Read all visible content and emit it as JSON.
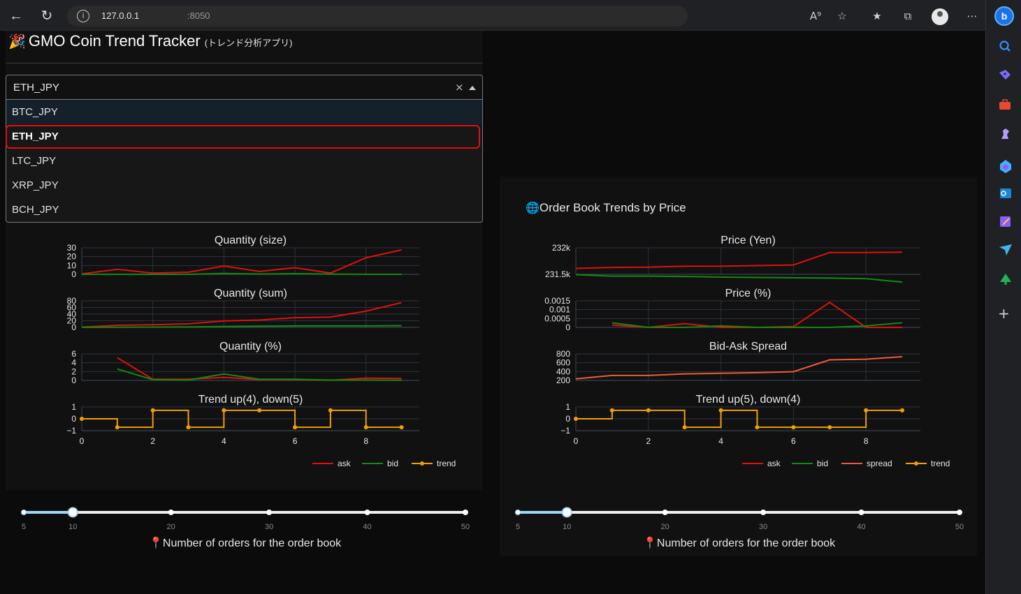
{
  "browser": {
    "url_host": "127.0.0.1",
    "url_port": ":8050"
  },
  "app": {
    "title": "GMO Coin Trend Tracker",
    "subtitle": "(トレンド分析アプリ)"
  },
  "symbol_select": {
    "value": "ETH_JPY",
    "options": [
      "BTC_JPY",
      "ETH_JPY",
      "LTC_JPY",
      "XRP_JPY",
      "BCH_JPY"
    ]
  },
  "right_panel": {
    "title": "Order Book Trends by Price"
  },
  "left_chart": {
    "chart_data": {
      "type": "line",
      "x": [
        0,
        1,
        2,
        3,
        4,
        5,
        6,
        7,
        8,
        9
      ],
      "subplots": [
        {
          "title": "Quantity (size)",
          "yticks": [
            "30",
            "20",
            "10",
            "0"
          ],
          "ylim": [
            0,
            32
          ],
          "series": [
            {
              "name": "ask",
              "color": "#e01010",
              "values": [
                0.5,
                6,
                1.5,
                2.5,
                10,
                3.5,
                8,
                1.5,
                20,
                29.5
              ]
            },
            {
              "name": "bid",
              "color": "#138a13",
              "values": [
                0,
                0,
                0,
                0,
                1,
                0.3,
                0.8,
                0.3,
                0,
                0
              ]
            }
          ]
        },
        {
          "title": "Quantity (sum)",
          "yticks": [
            "80",
            "60",
            "40",
            "20",
            "0"
          ],
          "ylim": [
            0,
            90
          ],
          "series": [
            {
              "name": "ask",
              "color": "#e01010",
              "values": [
                1,
                7,
                9,
                12,
                22,
                25,
                33,
                35,
                55,
                84
              ]
            },
            {
              "name": "bid",
              "color": "#138a13",
              "values": [
                0,
                0.5,
                1,
                1.5,
                3,
                4,
                5,
                5,
                5,
                6
              ]
            }
          ]
        },
        {
          "title": "Quantity (%)",
          "yticks": [
            "6",
            "4",
            "2",
            "0"
          ],
          "ylim": [
            0,
            7
          ],
          "series": [
            {
              "name": "ask",
              "color": "#e01010",
              "values": [
                null,
                6,
                0.3,
                0.3,
                0.8,
                0.2,
                0.2,
                0.05,
                0.6,
                0.5
              ]
            },
            {
              "name": "bid",
              "color": "#138a13",
              "values": [
                null,
                3,
                0.2,
                0.1,
                1.7,
                0.3,
                0.3,
                0.1,
                0.1,
                0.05
              ]
            }
          ]
        },
        {
          "title": "Trend up(4), down(5)",
          "yticks": [
            "1",
            "0",
            "−1"
          ],
          "ylim": [
            -1.4,
            1.4
          ],
          "series": [
            {
              "name": "trend",
              "color": "#f0a000",
              "step": true,
              "values": [
                0,
                -1,
                1,
                -1,
                1,
                1,
                -1,
                1,
                -1,
                -1
              ]
            }
          ]
        }
      ],
      "xticks": [
        "0",
        "2",
        "4",
        "6",
        "8"
      ],
      "legend": [
        "ask",
        "bid",
        "trend"
      ]
    }
  },
  "right_chart": {
    "chart_data": {
      "type": "line",
      "x": [
        0,
        1,
        2,
        3,
        4,
        5,
        6,
        7,
        8,
        9
      ],
      "subplots": [
        {
          "title": "Price (Yen)",
          "yticks": [
            "232k",
            "231.5k"
          ],
          "ylim": [
            231300,
            232150
          ],
          "series": [
            {
              "name": "ask",
              "color": "#e01010",
              "values": [
                231490,
                231520,
                231530,
                231560,
                231560,
                231580,
                231600,
                232000,
                232000,
                232010
              ]
            },
            {
              "name": "bid",
              "color": "#138a13",
              "values": [
                231290,
                231240,
                231240,
                231230,
                231210,
                231200,
                231190,
                231180,
                231160,
                231050
              ]
            }
          ]
        },
        {
          "title": "Price (%)",
          "yticks": [
            "0.0015",
            "0.001",
            "0.0005",
            "0"
          ],
          "ylim": [
            0,
            0.00175
          ],
          "series": [
            {
              "name": "ask",
              "color": "#e01010",
              "values": [
                null,
                0.00015,
                0.0,
                0.00025,
                0.0,
                0.0,
                5e-05,
                0.00165,
                0.0,
                0.0
              ]
            },
            {
              "name": "bid",
              "color": "#138a13",
              "values": [
                null,
                0.0003,
                0.0,
                0.0,
                0.0001,
                0.0,
                0.0,
                0.0,
                0.0001,
                0.0003
              ]
            }
          ]
        },
        {
          "title": "Bid-Ask Spread",
          "yticks": [
            "800",
            "600",
            "400",
            "200"
          ],
          "ylim": [
            150,
            1000
          ],
          "series": [
            {
              "name": "spread",
              "color": "#f05a3c",
              "values": [
                200,
                310,
                310,
                360,
                380,
                400,
                430,
                810,
                830,
                910
              ]
            }
          ]
        },
        {
          "title": "Trend up(5), down(4)",
          "yticks": [
            "1",
            "0",
            "−1"
          ],
          "ylim": [
            -1.4,
            1.4
          ],
          "series": [
            {
              "name": "trend",
              "color": "#f0a000",
              "step": true,
              "values": [
                0,
                1,
                1,
                -1,
                1,
                -1,
                -1,
                -1,
                1,
                1
              ]
            }
          ]
        }
      ],
      "xticks": [
        "0",
        "2",
        "4",
        "6",
        "8"
      ],
      "legend": [
        "ask",
        "bid",
        "spread",
        "trend"
      ]
    }
  },
  "sliders": [
    {
      "value": 10,
      "min": 5,
      "max": 50,
      "marks": [
        "5",
        "10",
        "20",
        "30",
        "40",
        "50"
      ],
      "caption": "Number of orders for the order book"
    },
    {
      "value": 10,
      "min": 5,
      "max": 50,
      "marks": [
        "5",
        "10",
        "20",
        "30",
        "40",
        "50"
      ],
      "caption": "Number of orders for the order book"
    }
  ],
  "icons": {
    "back": "back-arrow-icon",
    "refresh": "refresh-icon",
    "info": "info-icon",
    "read_aloud": "read-aloud-icon",
    "add_favorite": "add-favorite-icon",
    "favorites": "favorites-icon",
    "collections": "collections-icon",
    "profile": "profile-icon",
    "more": "more-icon",
    "dropdown_clear": "clear-icon",
    "dropdown_arrow": "caret-up-icon",
    "pin": "pushpin-icon",
    "globe": "globe-icon",
    "party": "party-popper-icon"
  },
  "sidebar_tools": [
    "search-icon",
    "tag-icon",
    "briefcase-icon",
    "chess-icon",
    "copilot-icon",
    "outlook-icon",
    "designer-icon",
    "send-icon",
    "tree-icon",
    "add-icon"
  ]
}
